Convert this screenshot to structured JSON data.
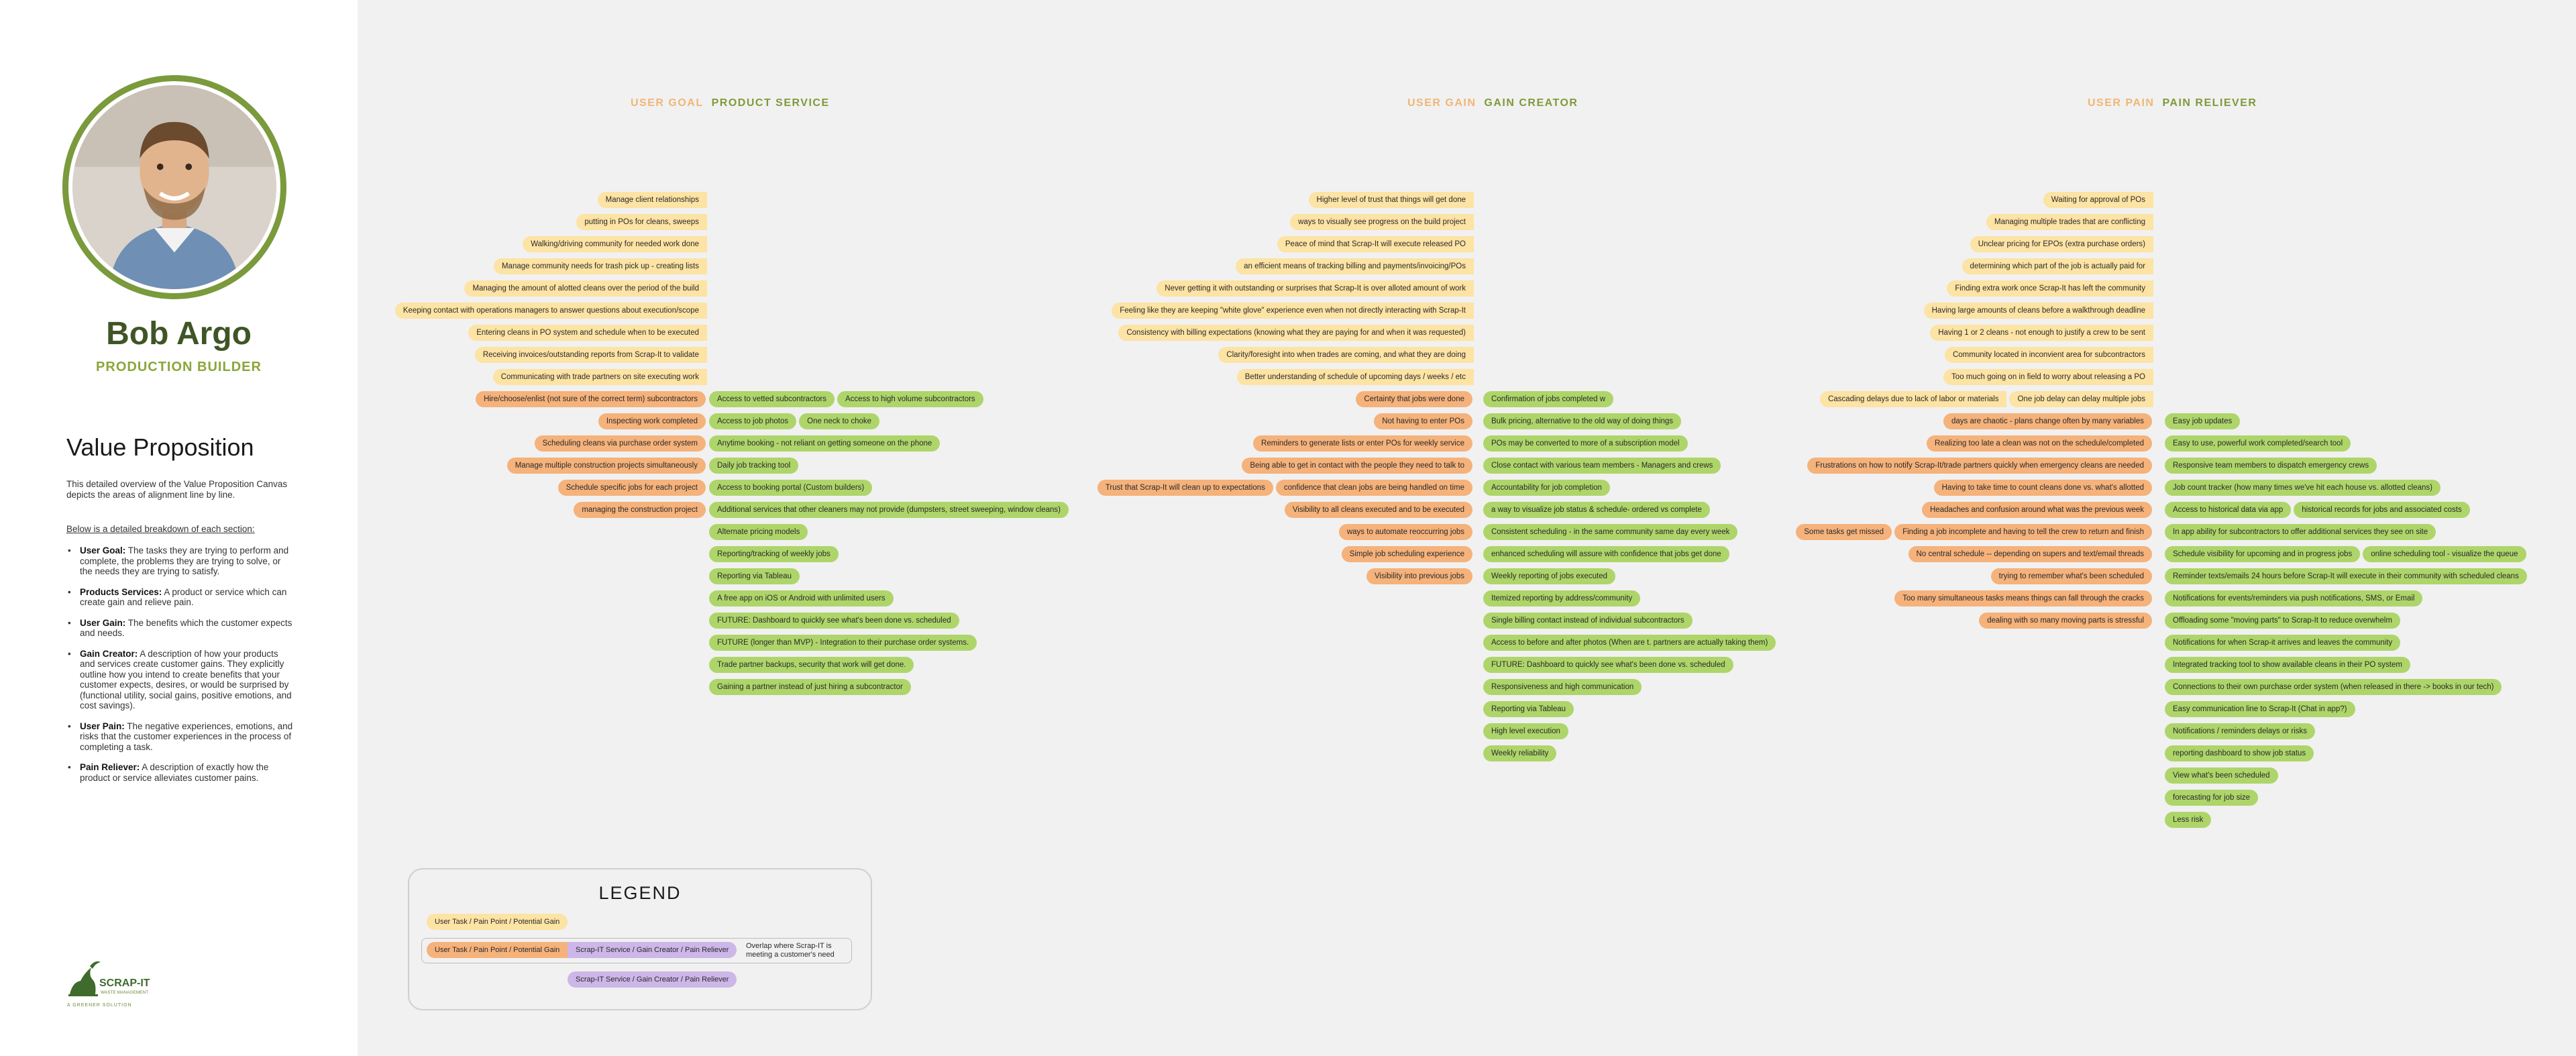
{
  "profile": {
    "name": "Bob Argo",
    "role": "PRODUCTION BUILDER"
  },
  "value_proposition": {
    "title": "Value Proposition",
    "intro": "This detailed overview of the Value Proposition Canvas depicts the areas of alignment line by line.",
    "breakdown_label": "Below is a detailed breakdown of each section:",
    "items": [
      {
        "term": "User Goal:",
        "desc": " The tasks they are trying to perform and complete, the problems they are trying to solve, or the needs they are trying to satisfy."
      },
      {
        "term": "Products Services:",
        "desc": " A product or service which can create gain and relieve pain."
      },
      {
        "term": "User Gain:",
        "desc": " The benefits which the customer expects and needs."
      },
      {
        "term": "Gain Creator:",
        "desc": " A description of how your products and services create customer gains. They explicitly outline how you intend to create benefits that your customer expects, desires, or would be surprised by (functional utility, social gains, positive emotions, and cost savings)."
      },
      {
        "term": "User Pain:",
        "desc": " The negative experiences, emotions, and risks that the customer experiences in the process of completing a task."
      },
      {
        "term": "Pain Reliever:",
        "desc": " A description of exactly how the product or service alleviates customer pains."
      }
    ]
  },
  "logo": {
    "brand": "SCRAP-IT",
    "sub": "WASTE MANAGEMENT",
    "tagline": "A GREENER SOLUTION"
  },
  "sections": [
    {
      "head_a": "USER GOAL",
      "head_b": "PRODUCT SERVICE",
      "left": [
        [
          {
            "t": "Manage client relationships",
            "s": "light"
          }
        ],
        [
          {
            "t": "putting in POs for cleans, sweeps",
            "s": "light"
          }
        ],
        [
          {
            "t": "Walking/driving community for needed work done",
            "s": "light"
          }
        ],
        [
          {
            "t": "Manage community needs for trash pick up - creating lists",
            "s": "light"
          }
        ],
        [
          {
            "t": "Managing the amount of alotted cleans over the period of the build",
            "s": "light"
          }
        ],
        [
          {
            "t": "Keeping contact with operations managers to answer questions about execution/scope",
            "s": "light"
          }
        ],
        [
          {
            "t": "Entering cleans in PO system and schedule when to be executed",
            "s": "light"
          }
        ],
        [
          {
            "t": "Receiving invoices/outstanding reports from Scrap-It to validate",
            "s": "light"
          }
        ],
        [
          {
            "t": "Communicating with trade partners on site executing work",
            "s": "light"
          }
        ],
        [
          {
            "t": "Hire/choose/enlist (not sure of the correct term) subcontractors",
            "s": "pain"
          }
        ],
        [
          {
            "t": "Inspecting work completed",
            "s": "pain"
          }
        ],
        [
          {
            "t": "Scheduling cleans via purchase order system",
            "s": "pain"
          }
        ],
        [
          {
            "t": "Manage multiple construction projects simultaneously",
            "s": "pain"
          }
        ],
        [
          {
            "t": "Schedule specific jobs for each project",
            "s": "pain"
          }
        ],
        [
          {
            "t": "managing the construction project",
            "s": "pain"
          }
        ]
      ],
      "right": [
        [],
        [],
        [],
        [],
        [],
        [],
        [],
        [],
        [],
        [
          {
            "t": "Access to vetted subcontractors"
          },
          {
            "t": "Access to high volume subcontractors"
          }
        ],
        [
          {
            "t": "Access to job photos"
          },
          {
            "t": "One neck to choke"
          }
        ],
        [
          {
            "t": "Anytime booking - not reliant on getting someone on the phone"
          }
        ],
        [
          {
            "t": "Daily job tracking tool"
          }
        ],
        [
          {
            "t": "Access to booking portal (Custom builders)"
          }
        ],
        [
          {
            "t": "Additional services that other cleaners may not provide (dumpsters, street sweeping, window cleans)"
          }
        ],
        [
          {
            "t": "Alternate pricing models"
          }
        ],
        [
          {
            "t": "Reporting/tracking of weekly jobs"
          }
        ],
        [
          {
            "t": "Reporting via Tableau"
          }
        ],
        [
          {
            "t": "A free app on iOS or Android with unlimited users"
          }
        ],
        [
          {
            "t": "FUTURE: Dashboard to quickly see what's been done vs. scheduled"
          }
        ],
        [
          {
            "t": "FUTURE (longer than MVP) - Integration to their purchase order systems."
          }
        ],
        [
          {
            "t": "Trade partner backups, security that work will get done."
          }
        ],
        [
          {
            "t": "Gaining a partner instead of just hiring a subcontractor"
          }
        ]
      ]
    },
    {
      "head_a": "USER GAIN",
      "head_b": "GAIN CREATOR",
      "left": [
        [
          {
            "t": "Higher level of trust that things will get done",
            "s": "light"
          }
        ],
        [
          {
            "t": "ways to visually see progress on the build project",
            "s": "light"
          }
        ],
        [
          {
            "t": "Peace of mind that Scrap-It will execute released PO",
            "s": "light"
          }
        ],
        [
          {
            "t": "an efficient means of tracking billing and payments/invoicing/POs",
            "s": "light"
          }
        ],
        [
          {
            "t": "Never getting it with outstanding or surprises that Scrap-It is over alloted amount of work",
            "s": "light"
          }
        ],
        [
          {
            "t": "Feeling like they are keeping \"white glove\" experience even when not directly interacting with Scrap-It",
            "s": "light"
          }
        ],
        [
          {
            "t": "Consistency with billing expectations (knowing what they are paying for and when it was requested)",
            "s": "light"
          }
        ],
        [
          {
            "t": "Clarity/foresight into when trades are coming, and what they are doing",
            "s": "light"
          }
        ],
        [
          {
            "t": "Better understanding of schedule of upcoming days / weeks / etc",
            "s": "light"
          }
        ],
        [
          {
            "t": "Certainty that jobs were done",
            "s": "pain"
          }
        ],
        [
          {
            "t": "Not having to enter POs",
            "s": "pain"
          }
        ],
        [
          {
            "t": "Reminders to generate lists or enter POs for weekly service",
            "s": "pain"
          }
        ],
        [
          {
            "t": "Being able to get in contact with the people they need to talk to",
            "s": "pain"
          }
        ],
        [
          {
            "t": "Trust that Scrap-It will clean up to expectations",
            "s": "pain"
          },
          {
            "t": "confidence that clean jobs are being handled on time",
            "s": "pain"
          }
        ],
        [
          {
            "t": "Visibility to all cleans executed and to be executed",
            "s": "pain"
          }
        ],
        [
          {
            "t": "ways to automate reoccurring jobs",
            "s": "pain"
          }
        ],
        [
          {
            "t": "Simple job scheduling experience",
            "s": "pain"
          }
        ],
        [
          {
            "t": "Visibility into previous jobs",
            "s": "pain"
          }
        ]
      ],
      "right": [
        [],
        [],
        [],
        [],
        [],
        [],
        [],
        [],
        [],
        [
          {
            "t": "Confirmation of jobs completed w"
          }
        ],
        [
          {
            "t": "Bulk pricing, alternative to the old way of doing things"
          }
        ],
        [
          {
            "t": "POs may be converted to more of a subscription model"
          }
        ],
        [
          {
            "t": "Close contact with various team members - Managers and crews"
          }
        ],
        [
          {
            "t": "Accountability for job completion"
          }
        ],
        [
          {
            "t": "a way to visualize job status & schedule- ordered vs complete"
          }
        ],
        [
          {
            "t": "Consistent scheduling - in the same community same day every week"
          }
        ],
        [
          {
            "t": "enhanced scheduling will assure with confidence that jobs get done"
          }
        ],
        [
          {
            "t": "Weekly reporting of jobs executed"
          }
        ],
        [
          {
            "t": "Itemized reporting by address/community"
          }
        ],
        [
          {
            "t": "Single billing contact instead of individual subcontractors"
          }
        ],
        [
          {
            "t": "Access to before and after photos (When are t. partners  are actually taking them)"
          }
        ],
        [
          {
            "t": "FUTURE: Dashboard to quickly see what's been done vs. scheduled"
          }
        ],
        [
          {
            "t": "Responsiveness and high communication"
          }
        ],
        [
          {
            "t": "Reporting via Tableau"
          }
        ],
        [
          {
            "t": "High level execution"
          }
        ],
        [
          {
            "t": "Weekly reliability"
          }
        ]
      ]
    },
    {
      "head_a": "USER PAIN",
      "head_b": "PAIN RELIEVER",
      "left": [
        [
          {
            "t": "Waiting for approval of POs",
            "s": "light"
          }
        ],
        [
          {
            "t": "Managing multiple trades that are conflicting",
            "s": "light"
          }
        ],
        [
          {
            "t": "Unclear pricing for EPOs (extra purchase orders)",
            "s": "light"
          }
        ],
        [
          {
            "t": "determining which part of the job is actually paid for",
            "s": "light"
          }
        ],
        [
          {
            "t": "Finding extra work once Scrap-It has left the community",
            "s": "light"
          }
        ],
        [
          {
            "t": "Having large amounts of cleans before a walkthrough deadline",
            "s": "light"
          }
        ],
        [
          {
            "t": "Having 1 or 2 cleans - not enough to justify a crew to be sent",
            "s": "light"
          }
        ],
        [
          {
            "t": "Community located in inconvient area for subcontractors",
            "s": "light"
          }
        ],
        [
          {
            "t": "Too much going on in field to worry about releasing a PO",
            "s": "light"
          }
        ],
        [
          {
            "t": "Cascading delays due to lack of labor or materials",
            "s": "light"
          },
          {
            "t": "One job delay can delay multiple jobs",
            "s": "light"
          }
        ],
        [
          {
            "t": "days are chaotic - plans change often by many variables",
            "s": "pain"
          }
        ],
        [
          {
            "t": "Realizing too late a clean was not on the schedule/completed",
            "s": "pain"
          }
        ],
        [
          {
            "t": "Frustrations on how  to notify Scrap-It/trade partners quickly when emergency cleans are needed",
            "s": "pain"
          }
        ],
        [
          {
            "t": "Having to take time to count cleans done vs. what's allotted",
            "s": "pain"
          }
        ],
        [
          {
            "t": "Headaches and confusion around what was the previous week",
            "s": "pain"
          }
        ],
        [
          {
            "t": "Some tasks get missed",
            "s": "pain"
          },
          {
            "t": "Finding a job incomplete and having to tell the crew to return and finish",
            "s": "pain"
          }
        ],
        [
          {
            "t": "No central schedule -- depending on supers and text/email threads",
            "s": "pain"
          }
        ],
        [
          {
            "t": "trying to remember what's been scheduled",
            "s": "pain"
          }
        ],
        [
          {
            "t": "Too many simultaneous tasks means things can fall through the cracks",
            "s": "pain"
          }
        ],
        [
          {
            "t": "dealing with so many moving parts is stressful",
            "s": "pain"
          }
        ]
      ],
      "right": [
        [],
        [],
        [],
        [],
        [],
        [],
        [],
        [],
        [],
        [],
        [
          {
            "t": "Easy job updates"
          }
        ],
        [
          {
            "t": "Easy to use, powerful work completed/search tool"
          }
        ],
        [
          {
            "t": "Responsive team members to dispatch emergency crews"
          }
        ],
        [
          {
            "t": "Job count tracker (how many times we've hit each house vs. allotted cleans)"
          }
        ],
        [
          {
            "t": "Access to historical data via app"
          },
          {
            "t": "historical records for jobs and associated costs"
          }
        ],
        [
          {
            "t": "In app ability for subcontractors to offer additional services they see on site"
          }
        ],
        [
          {
            "t": "Schedule visibility for upcoming and in progress jobs"
          },
          {
            "t": "online scheduling tool - visualize the queue"
          }
        ],
        [
          {
            "t": "Reminder texts/emails 24 hours before Scrap-It will execute in their community with scheduled cleans"
          }
        ],
        [
          {
            "t": "Notifications for events/reminders via push notifications, SMS, or Email"
          }
        ],
        [
          {
            "t": "Offloading some \"moving parts\" to Scrap-It to reduce overwhelm"
          }
        ],
        [
          {
            "t": "Notifications for when Scrap-it arrives and leaves the community"
          }
        ],
        [
          {
            "t": "Integrated tracking tool to show available cleans in their PO system"
          }
        ],
        [
          {
            "t": "Connections to their own purchase order system (when released in there -> books in our tech)"
          }
        ],
        [
          {
            "t": "Easy communication line to Scrap-It (Chat in app?)"
          }
        ],
        [
          {
            "t": "Notifications / reminders delays or risks"
          }
        ],
        [
          {
            "t": "reporting dashboard to show job status"
          }
        ],
        [
          {
            "t": "View what's been scheduled"
          }
        ],
        [
          {
            "t": "forecasting for job size"
          }
        ],
        [
          {
            "t": "Less risk"
          }
        ]
      ]
    }
  ],
  "legend": {
    "title": "LEGEND",
    "task_label": "User Task / Pain Point / Potential Gain",
    "overlap_task": "User Task / Pain Point / Potential Gain",
    "overlap_service": "Scrap-IT Service / Gain Creator / Pain Reliever",
    "overlap_desc": "Overlap where Scrap-IT is meeting a customer's need",
    "service_label": "Scrap-IT Service / Gain Creator / Pain Reliever",
    "colors": {
      "task": "#fde3a4",
      "pain": "#f5b27b",
      "service": "#cdb6e8",
      "green": "#aed56a"
    }
  }
}
